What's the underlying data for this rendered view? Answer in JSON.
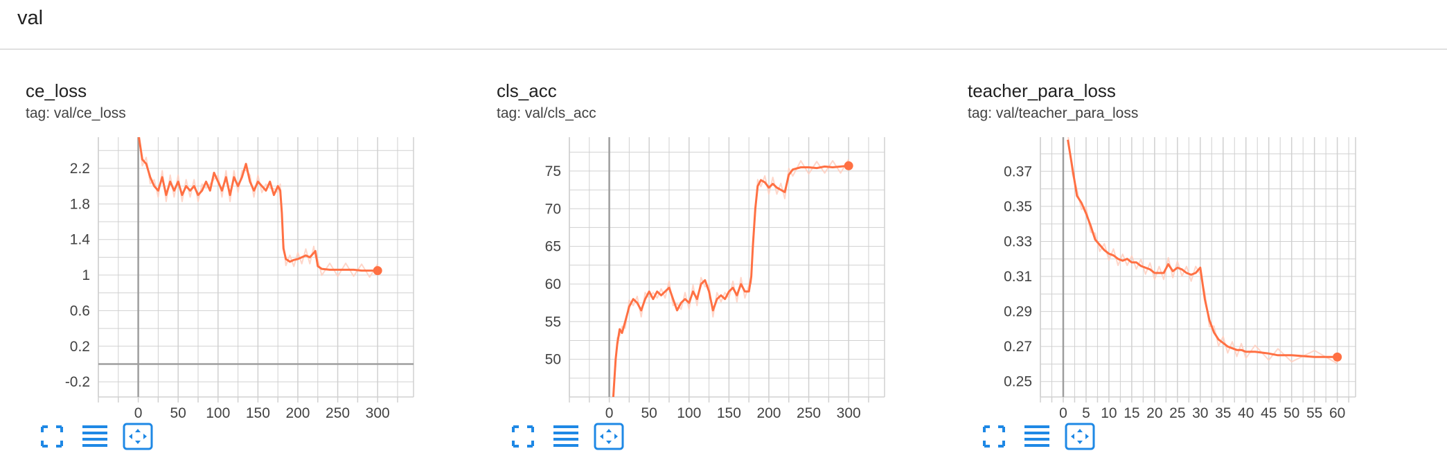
{
  "header": {
    "title": "val"
  },
  "colors": {
    "line": "#ff7043",
    "line_raw": "#ffccbc",
    "grid": "#d0d0d0",
    "axis": "#9e9e9e",
    "icon": "#1e88e5"
  },
  "toolbar_icons": [
    "fullscreen-icon",
    "toggle-log-icon",
    "fit-domain-icon"
  ],
  "chart_data": [
    {
      "type": "line",
      "title": "ce_loss",
      "tag": "tag: val/ce_loss",
      "xlim": [
        -50,
        345
      ],
      "ylim": [
        -0.37,
        2.55
      ],
      "x_ticks": [
        0,
        50,
        100,
        150,
        200,
        250,
        300
      ],
      "y_ticks": [
        -0.2,
        0.2,
        0.6,
        1,
        1.4,
        1.8,
        2.2
      ],
      "y_tick_labels": [
        "-0.2",
        "0.2",
        "0.6",
        "1",
        "1.4",
        "1.8",
        "2.2"
      ],
      "grid": true,
      "series": [
        {
          "x": [
            0,
            5,
            10,
            15,
            20,
            25,
            30,
            35,
            40,
            45,
            50,
            55,
            60,
            65,
            70,
            75,
            80,
            85,
            90,
            95,
            100,
            105,
            110,
            115,
            120,
            125,
            130,
            135,
            140,
            145,
            150,
            155,
            160,
            165,
            170,
            175,
            178,
            180,
            182,
            185,
            190,
            195,
            200,
            205,
            210,
            215,
            220,
            222,
            225,
            230,
            240,
            250,
            260,
            270,
            280,
            290,
            300
          ],
          "y": [
            2.6,
            2.3,
            2.25,
            2.1,
            2.0,
            1.95,
            2.1,
            1.9,
            2.05,
            1.95,
            2.05,
            1.9,
            2.0,
            1.95,
            2.0,
            1.9,
            1.95,
            2.05,
            1.95,
            2.15,
            2.05,
            1.95,
            2.1,
            1.9,
            2.1,
            2.0,
            2.1,
            2.25,
            2.05,
            1.95,
            2.05,
            2.0,
            1.95,
            2.05,
            1.9,
            2.0,
            1.95,
            1.7,
            1.3,
            1.18,
            1.15,
            1.17,
            1.18,
            1.2,
            1.22,
            1.2,
            1.25,
            1.27,
            1.1,
            1.07,
            1.06,
            1.06,
            1.06,
            1.06,
            1.05,
            1.05,
            1.05
          ]
        }
      ]
    },
    {
      "type": "line",
      "title": "cls_acc",
      "tag": "tag: val/cls_acc",
      "xlim": [
        -50,
        345
      ],
      "ylim": [
        45,
        79.5
      ],
      "x_ticks": [
        0,
        50,
        100,
        150,
        200,
        250,
        300
      ],
      "y_ticks": [
        50,
        55,
        60,
        65,
        70,
        75
      ],
      "y_tick_labels": [
        "50",
        "55",
        "60",
        "65",
        "70",
        "75"
      ],
      "grid": true,
      "series": [
        {
          "x": [
            5,
            8,
            10,
            13,
            16,
            20,
            25,
            30,
            35,
            40,
            45,
            50,
            55,
            60,
            65,
            70,
            75,
            80,
            85,
            90,
            95,
            100,
            105,
            110,
            115,
            120,
            125,
            130,
            135,
            140,
            145,
            150,
            155,
            160,
            165,
            170,
            175,
            178,
            180,
            183,
            186,
            190,
            195,
            200,
            205,
            210,
            215,
            220,
            225,
            230,
            240,
            250,
            260,
            270,
            280,
            290,
            300
          ],
          "y": [
            45,
            50,
            52,
            54,
            53.5,
            55,
            57,
            58,
            57.5,
            56.5,
            58,
            59,
            58,
            59,
            58.5,
            59,
            59.5,
            58,
            56.5,
            57.5,
            58,
            57.5,
            59,
            58,
            60,
            60.5,
            59,
            56.5,
            58,
            58.5,
            58,
            59,
            59.5,
            58.5,
            60,
            59,
            59,
            61,
            65,
            70,
            73,
            73.8,
            73.5,
            72.8,
            73.3,
            72.8,
            72.5,
            72.2,
            74.5,
            75.2,
            75.5,
            75.5,
            75.4,
            75.6,
            75.5,
            75.6,
            75.7
          ]
        }
      ]
    },
    {
      "type": "line",
      "title": "teacher_para_loss",
      "tag": "tag: val/teacher_para_loss",
      "xlim": [
        -5,
        64
      ],
      "ylim": [
        0.2412,
        0.3895
      ],
      "x_ticks": [
        0,
        5,
        10,
        15,
        20,
        25,
        30,
        35,
        40,
        45,
        50,
        55,
        60
      ],
      "y_ticks": [
        0.25,
        0.27,
        0.29,
        0.31,
        0.33,
        0.35,
        0.37
      ],
      "y_tick_labels": [
        "0.25",
        "0.27",
        "0.29",
        "0.31",
        "0.33",
        "0.35",
        "0.37"
      ],
      "grid": true,
      "series": [
        {
          "x": [
            1,
            2,
            3,
            4,
            5,
            6,
            7,
            8,
            9,
            10,
            11,
            12,
            13,
            14,
            15,
            16,
            17,
            18,
            19,
            20,
            21,
            22,
            23,
            24,
            25,
            26,
            27,
            28,
            29,
            30,
            31,
            32,
            33,
            34,
            35,
            36,
            37,
            38,
            39,
            40,
            42,
            45,
            47,
            50,
            55,
            60
          ],
          "y": [
            0.388,
            0.372,
            0.356,
            0.352,
            0.346,
            0.339,
            0.331,
            0.328,
            0.325,
            0.323,
            0.322,
            0.32,
            0.319,
            0.32,
            0.318,
            0.318,
            0.316,
            0.315,
            0.314,
            0.312,
            0.312,
            0.312,
            0.317,
            0.313,
            0.315,
            0.314,
            0.312,
            0.311,
            0.312,
            0.315,
            0.297,
            0.285,
            0.278,
            0.274,
            0.272,
            0.27,
            0.269,
            0.268,
            0.268,
            0.267,
            0.267,
            0.266,
            0.265,
            0.265,
            0.264,
            0.264
          ]
        }
      ]
    }
  ]
}
